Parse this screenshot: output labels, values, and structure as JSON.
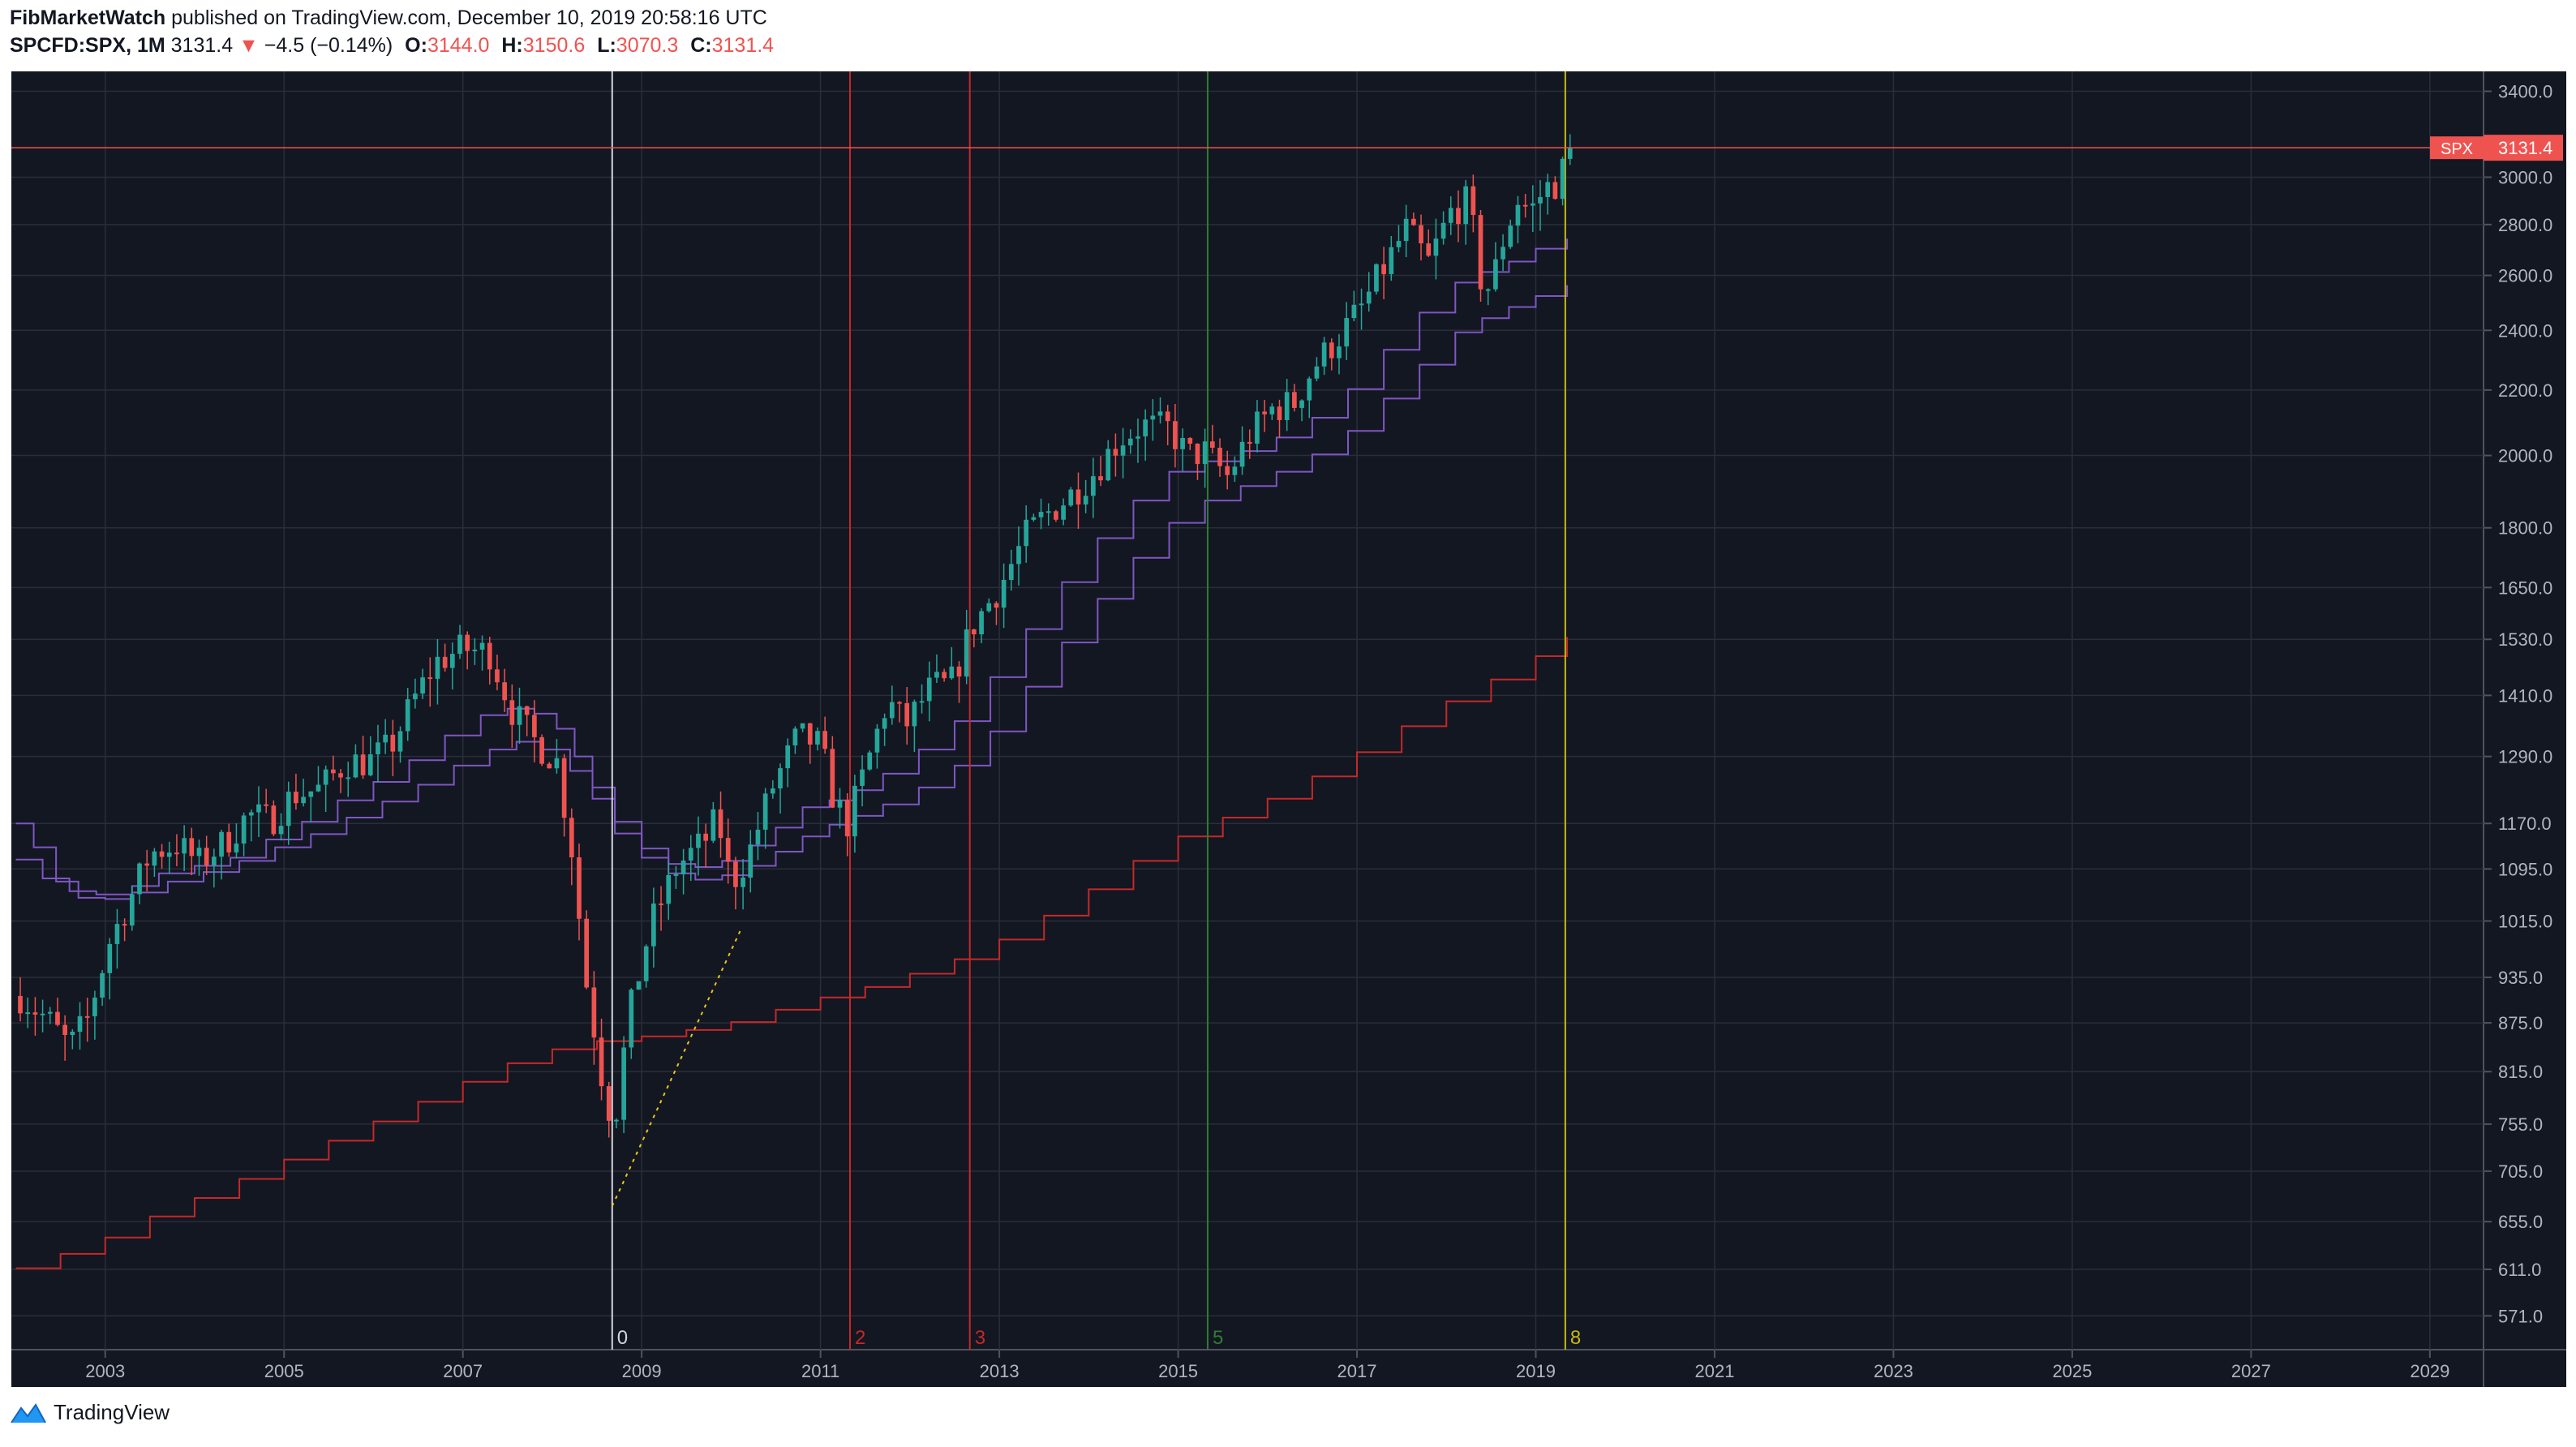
{
  "header": {
    "author": "FibMarketWatch",
    "published_text": "published on TradingView.com, December 10, 2019 20:58:16 UTC",
    "symbol": "SPCFD:SPX, 1M",
    "last": "3131.4",
    "change_arrow": "▼",
    "change": "−4.5 (−0.14%)",
    "open_label": "O:",
    "open": "3144.0",
    "high_label": "H:",
    "high": "3150.6",
    "low_label": "L:",
    "low": "3070.3",
    "close_label": "C:",
    "close": "3131.4"
  },
  "brand": {
    "name": "TradingView",
    "icon": "tradingview-logo-icon"
  },
  "colors": {
    "background": "#131722",
    "grid": "#2a2e39",
    "up": "#26a69a",
    "down": "#ef5350",
    "text": "#b2b5be",
    "ma": "#7e57c2",
    "ma200": "#c62828"
  },
  "chart_data": {
    "type": "candlestick",
    "symbol": "SPX",
    "timeframe": "1M",
    "y_scale": "log",
    "ylim": [
      550,
      3500
    ],
    "xlim": [
      2002.45,
      2030.1
    ],
    "price_label": {
      "name": "SPX",
      "value": 3131.4
    },
    "y_ticks": [
      571.0,
      611.0,
      655.0,
      705.0,
      755.0,
      815.0,
      875.0,
      935.0,
      1015.0,
      1095.0,
      1170.0,
      1290.0,
      1410.0,
      1530.0,
      1650.0,
      1800.0,
      2000.0,
      2200.0,
      2400.0,
      2600.0,
      2800.0,
      3000.0,
      3400.0
    ],
    "x_ticks": [
      "2003",
      "2005",
      "2007",
      "2009",
      "2011",
      "2013",
      "2015",
      "2017",
      "2019",
      "2021",
      "2023",
      "2025",
      "2027",
      "2029"
    ],
    "anchors": [
      [
        2002.55,
        910
      ],
      [
        2002.85,
        880
      ],
      [
        2003.1,
        845
      ],
      [
        2003.3,
        880
      ],
      [
        2003.55,
        985
      ],
      [
        2003.8,
        1055
      ],
      [
        2004.0,
        1120
      ],
      [
        2004.3,
        1135
      ],
      [
        2004.55,
        1105
      ],
      [
        2004.85,
        1140
      ],
      [
        2005.1,
        1185
      ],
      [
        2005.35,
        1175
      ],
      [
        2005.6,
        1220
      ],
      [
        2005.9,
        1230
      ],
      [
        2006.2,
        1280
      ],
      [
        2006.45,
        1280
      ],
      [
        2006.7,
        1310
      ],
      [
        2006.95,
        1400
      ],
      [
        2007.2,
        1480
      ],
      [
        2007.5,
        1510
      ],
      [
        2007.8,
        1500
      ],
      [
        2008.05,
        1380
      ],
      [
        2008.3,
        1320
      ],
      [
        2008.55,
        1280
      ],
      [
        2008.75,
        1100
      ],
      [
        2008.85,
        950
      ],
      [
        2008.95,
        880
      ],
      [
        2009.1,
        780
      ],
      [
        2009.2,
        760
      ],
      [
        2009.35,
        880
      ],
      [
        2009.6,
        1010
      ],
      [
        2009.9,
        1100
      ],
      [
        2010.2,
        1140
      ],
      [
        2010.35,
        1180
      ],
      [
        2010.5,
        1070
      ],
      [
        2010.7,
        1120
      ],
      [
        2010.95,
        1230
      ],
      [
        2011.25,
        1330
      ],
      [
        2011.5,
        1310
      ],
      [
        2011.65,
        1210
      ],
      [
        2011.8,
        1170
      ],
      [
        2011.95,
        1240
      ],
      [
        2012.25,
        1400
      ],
      [
        2012.45,
        1350
      ],
      [
        2012.75,
        1430
      ],
      [
        2012.95,
        1430
      ],
      [
        2013.2,
        1560
      ],
      [
        2013.5,
        1650
      ],
      [
        2013.8,
        1780
      ],
      [
        2014.0,
        1830
      ],
      [
        2014.3,
        1890
      ],
      [
        2014.55,
        1950
      ],
      [
        2014.85,
        2050
      ],
      [
        2015.1,
        2090
      ],
      [
        2015.4,
        2080
      ],
      [
        2015.6,
        2000
      ],
      [
        2015.8,
        2010
      ],
      [
        2016.05,
        1940
      ],
      [
        2016.3,
        2060
      ],
      [
        2016.55,
        2140
      ],
      [
        2016.8,
        2160
      ],
      [
        2017.0,
        2270
      ],
      [
        2017.3,
        2380
      ],
      [
        2017.55,
        2480
      ],
      [
        2017.8,
        2630
      ],
      [
        2018.05,
        2780
      ],
      [
        2018.3,
        2650
      ],
      [
        2018.55,
        2850
      ],
      [
        2018.75,
        2900
      ],
      [
        2018.9,
        2550
      ],
      [
        2019.0,
        2560
      ],
      [
        2019.15,
        2760
      ],
      [
        2019.3,
        2900
      ],
      [
        2019.45,
        2860
      ],
      [
        2019.6,
        2950
      ],
      [
        2019.75,
        2980
      ],
      [
        2019.87,
        3100
      ],
      [
        2019.93,
        3131.4
      ]
    ],
    "moving_averages": [
      {
        "points": [
          [
            2002.5,
            1170
          ],
          [
            2002.7,
            1130
          ],
          [
            2002.95,
            1075
          ],
          [
            2003.2,
            1050
          ],
          [
            2003.5,
            1048
          ],
          [
            2003.8,
            1068
          ],
          [
            2004.1,
            1088
          ],
          [
            2004.5,
            1100
          ],
          [
            2004.9,
            1113
          ],
          [
            2005.3,
            1143
          ],
          [
            2005.7,
            1173
          ],
          [
            2006.1,
            1210
          ],
          [
            2006.5,
            1243
          ],
          [
            2006.9,
            1283
          ],
          [
            2007.3,
            1330
          ],
          [
            2007.7,
            1370
          ],
          [
            2008.0,
            1383
          ],
          [
            2008.3,
            1373
          ],
          [
            2008.55,
            1343
          ],
          [
            2008.75,
            1290
          ],
          [
            2008.95,
            1233
          ],
          [
            2009.2,
            1173
          ],
          [
            2009.5,
            1128
          ],
          [
            2009.8,
            1103
          ],
          [
            2010.1,
            1098
          ],
          [
            2010.4,
            1108
          ],
          [
            2010.7,
            1133
          ],
          [
            2011.0,
            1163
          ],
          [
            2011.3,
            1198
          ],
          [
            2011.6,
            1210
          ],
          [
            2011.9,
            1228
          ],
          [
            2012.2,
            1258
          ],
          [
            2012.6,
            1303
          ],
          [
            2013.0,
            1358
          ],
          [
            2013.4,
            1448
          ],
          [
            2013.8,
            1553
          ],
          [
            2014.2,
            1663
          ],
          [
            2014.6,
            1773
          ],
          [
            2015.0,
            1873
          ],
          [
            2015.4,
            1953
          ],
          [
            2015.8,
            1983
          ],
          [
            2016.2,
            2013
          ],
          [
            2016.6,
            2053
          ],
          [
            2017.0,
            2113
          ],
          [
            2017.4,
            2203
          ],
          [
            2017.8,
            2333
          ],
          [
            2018.2,
            2463
          ],
          [
            2018.6,
            2573
          ],
          [
            2018.9,
            2613
          ],
          [
            2019.2,
            2653
          ],
          [
            2019.5,
            2703
          ],
          [
            2019.85,
            2743
          ]
        ]
      },
      {
        "points": [
          [
            2002.5,
            1110
          ],
          [
            2002.8,
            1080
          ],
          [
            2003.1,
            1060
          ],
          [
            2003.4,
            1055
          ],
          [
            2003.8,
            1058
          ],
          [
            2004.2,
            1075
          ],
          [
            2004.6,
            1090
          ],
          [
            2005.0,
            1108
          ],
          [
            2005.4,
            1130
          ],
          [
            2005.8,
            1152
          ],
          [
            2006.2,
            1180
          ],
          [
            2006.6,
            1208
          ],
          [
            2007.0,
            1238
          ],
          [
            2007.4,
            1273
          ],
          [
            2007.8,
            1303
          ],
          [
            2008.1,
            1318
          ],
          [
            2008.4,
            1303
          ],
          [
            2008.7,
            1263
          ],
          [
            2008.95,
            1213
          ],
          [
            2009.2,
            1153
          ],
          [
            2009.5,
            1113
          ],
          [
            2009.8,
            1088
          ],
          [
            2010.1,
            1078
          ],
          [
            2010.4,
            1085
          ],
          [
            2010.7,
            1100
          ],
          [
            2011.0,
            1123
          ],
          [
            2011.3,
            1148
          ],
          [
            2011.6,
            1168
          ],
          [
            2011.9,
            1183
          ],
          [
            2012.2,
            1203
          ],
          [
            2012.6,
            1233
          ],
          [
            2013.0,
            1273
          ],
          [
            2013.4,
            1338
          ],
          [
            2013.8,
            1428
          ],
          [
            2014.2,
            1523
          ],
          [
            2014.6,
            1623
          ],
          [
            2015.0,
            1723
          ],
          [
            2015.4,
            1813
          ],
          [
            2015.8,
            1873
          ],
          [
            2016.2,
            1913
          ],
          [
            2016.6,
            1953
          ],
          [
            2017.0,
            2003
          ],
          [
            2017.4,
            2073
          ],
          [
            2017.8,
            2173
          ],
          [
            2018.2,
            2283
          ],
          [
            2018.6,
            2393
          ],
          [
            2018.9,
            2443
          ],
          [
            2019.2,
            2483
          ],
          [
            2019.5,
            2523
          ],
          [
            2019.85,
            2563
          ]
        ]
      },
      {
        "points": [
          [
            2002.5,
            612
          ],
          [
            2003.0,
            625
          ],
          [
            2003.5,
            640
          ],
          [
            2004.0,
            660
          ],
          [
            2004.5,
            678
          ],
          [
            2005.0,
            697
          ],
          [
            2005.5,
            717
          ],
          [
            2006.0,
            737
          ],
          [
            2006.5,
            758
          ],
          [
            2007.0,
            780
          ],
          [
            2007.5,
            803
          ],
          [
            2008.0,
            825
          ],
          [
            2008.5,
            842
          ],
          [
            2009.0,
            852
          ],
          [
            2009.5,
            858
          ],
          [
            2010.0,
            866
          ],
          [
            2010.5,
            876
          ],
          [
            2011.0,
            892
          ],
          [
            2011.5,
            908
          ],
          [
            2012.0,
            922
          ],
          [
            2012.5,
            940
          ],
          [
            2013.0,
            960
          ],
          [
            2013.5,
            988
          ],
          [
            2014.0,
            1023
          ],
          [
            2014.5,
            1063
          ],
          [
            2015.0,
            1108
          ],
          [
            2015.5,
            1148
          ],
          [
            2016.0,
            1180
          ],
          [
            2016.5,
            1213
          ],
          [
            2017.0,
            1253
          ],
          [
            2017.5,
            1298
          ],
          [
            2018.0,
            1348
          ],
          [
            2018.5,
            1398
          ],
          [
            2019.0,
            1443
          ],
          [
            2019.5,
            1493
          ],
          [
            2019.85,
            1535
          ]
        ]
      }
    ],
    "fib_lines": [
      {
        "label": "0",
        "x": 2009.17,
        "color": "#d1d4dc"
      },
      {
        "label": "2",
        "x": 2011.83,
        "color": "#c62828"
      },
      {
        "label": "3",
        "x": 2013.17,
        "color": "#c62828"
      },
      {
        "label": "5",
        "x": 2015.83,
        "color": "#2e7d32"
      },
      {
        "label": "8",
        "x": 2019.83,
        "color": "#c6b814"
      }
    ],
    "trendline": {
      "from": [
        2009.17,
        670
      ],
      "to": [
        2010.6,
        1000
      ],
      "color": "#f0c419"
    }
  }
}
